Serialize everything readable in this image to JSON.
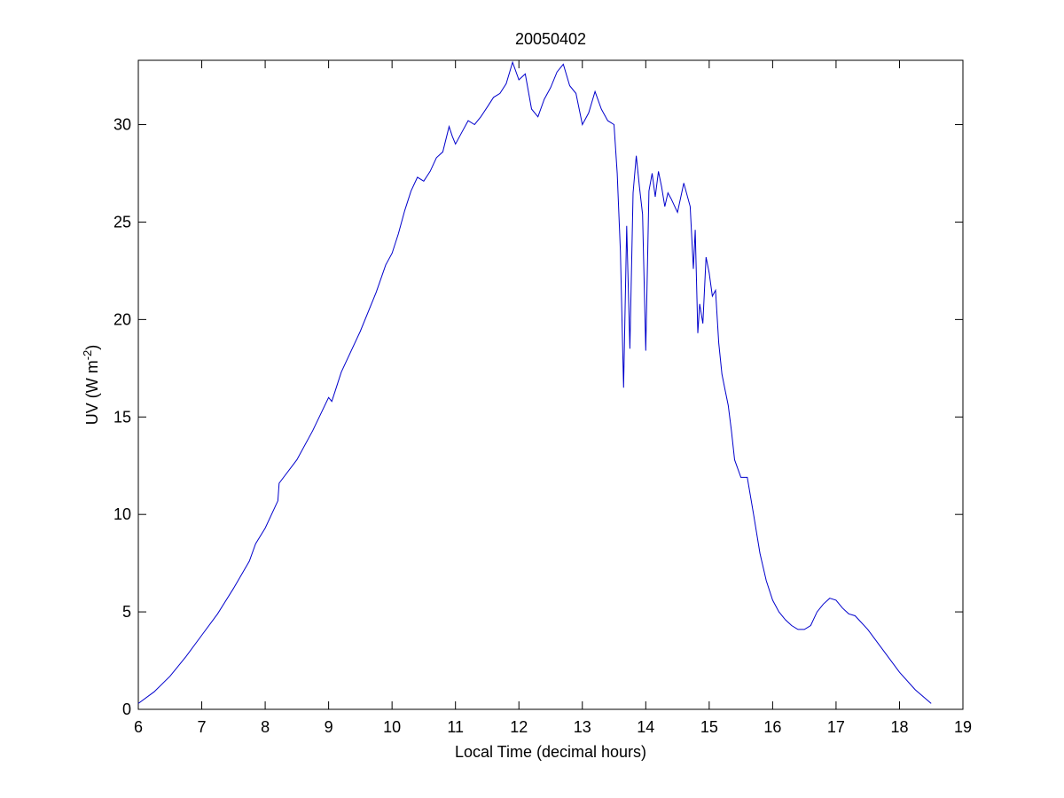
{
  "chart_data": {
    "type": "line",
    "title": "20050402",
    "xlabel": "Local Time (decimal hours)",
    "ylabel": {
      "main": "UV (W m",
      "superscript": "-2",
      "close": ")"
    },
    "xlim": [
      6,
      19
    ],
    "ylim": [
      0,
      33.3
    ],
    "xticks": [
      6,
      7,
      8,
      9,
      10,
      11,
      12,
      13,
      14,
      15,
      16,
      17,
      18,
      19
    ],
    "yticks": [
      0,
      5,
      10,
      15,
      20,
      25,
      30
    ],
    "grid": false,
    "legend": "none",
    "line_color": "#0000cc",
    "series": [
      {
        "x": [
          6.0,
          6.25,
          6.5,
          6.75,
          7.0,
          7.25,
          7.5,
          7.75,
          7.85,
          8.0,
          8.2,
          8.22,
          8.5,
          8.75,
          9.0,
          9.05,
          9.1,
          9.2,
          9.5,
          9.75,
          9.9,
          10.0,
          10.1,
          10.2,
          10.3,
          10.4,
          10.5,
          10.6,
          10.7,
          10.8,
          10.9,
          10.95,
          11.0,
          11.1,
          11.2,
          11.3,
          11.4,
          11.5,
          11.6,
          11.7,
          11.8,
          11.9,
          12.0,
          12.1,
          12.2,
          12.3,
          12.4,
          12.5,
          12.6,
          12.7,
          12.8,
          12.9,
          13.0,
          13.1,
          13.2,
          13.3,
          13.4,
          13.5,
          13.55,
          13.6,
          13.65,
          13.7,
          13.75,
          13.8,
          13.85,
          13.9,
          13.95,
          14.0,
          14.05,
          14.1,
          14.15,
          14.2,
          14.25,
          14.3,
          14.35,
          14.4,
          14.5,
          14.6,
          14.7,
          14.75,
          14.78,
          14.82,
          14.85,
          14.9,
          14.95,
          15.0,
          15.05,
          15.1,
          15.15,
          15.2,
          15.25,
          15.3,
          15.35,
          15.4,
          15.5,
          15.6,
          15.7,
          15.8,
          15.9,
          16.0,
          16.1,
          16.2,
          16.3,
          16.4,
          16.5,
          16.6,
          16.7,
          16.8,
          16.9,
          17.0,
          17.1,
          17.2,
          17.3,
          17.5,
          17.75,
          18.0,
          18.25,
          18.5
        ],
        "y": [
          0.3,
          0.9,
          1.7,
          2.7,
          3.8,
          4.9,
          6.2,
          7.6,
          8.5,
          9.3,
          10.7,
          11.6,
          12.8,
          14.3,
          16.0,
          15.8,
          16.3,
          17.3,
          19.4,
          21.4,
          22.8,
          23.4,
          24.4,
          25.6,
          26.6,
          27.3,
          27.1,
          27.6,
          28.3,
          28.6,
          29.9,
          29.4,
          29.0,
          29.6,
          30.2,
          30.0,
          30.4,
          30.9,
          31.4,
          31.6,
          32.1,
          33.2,
          32.3,
          32.6,
          30.8,
          30.4,
          31.3,
          31.9,
          32.7,
          33.1,
          32.0,
          31.6,
          30.0,
          30.6,
          31.7,
          30.8,
          30.2,
          30.0,
          27.5,
          23.5,
          16.5,
          24.8,
          18.5,
          26.5,
          28.4,
          26.8,
          25.4,
          18.4,
          26.6,
          27.5,
          26.3,
          27.6,
          26.8,
          25.8,
          26.5,
          26.2,
          25.5,
          27.0,
          25.8,
          22.6,
          24.6,
          19.3,
          20.8,
          19.8,
          23.2,
          22.4,
          21.2,
          21.5,
          18.8,
          17.2,
          16.4,
          15.6,
          14.3,
          12.8,
          11.9,
          11.9,
          10.0,
          8.0,
          6.6,
          5.6,
          5.0,
          4.6,
          4.3,
          4.1,
          4.1,
          4.3,
          5.0,
          5.4,
          5.7,
          5.6,
          5.2,
          4.9,
          4.8,
          4.1,
          3.0,
          1.9,
          1.0,
          0.3
        ]
      }
    ]
  }
}
